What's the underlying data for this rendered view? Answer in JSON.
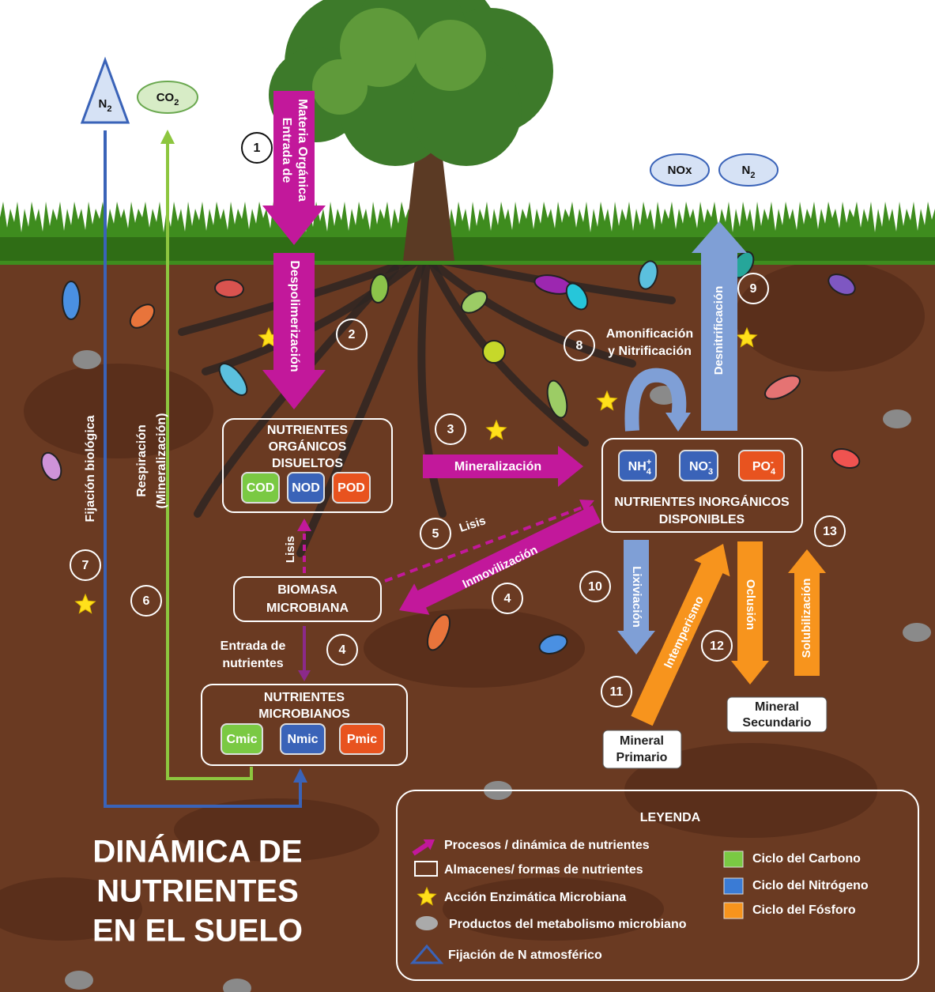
{
  "title": [
    "DINÁMICA DE",
    "NUTRIENTES",
    "EN EL SUELO"
  ],
  "atmosphere": {
    "n2_in": {
      "base": "N",
      "sub": "2"
    },
    "co2": {
      "base": "CO",
      "sub": "2"
    },
    "nox": "NOx",
    "n2_out": {
      "base": "N",
      "sub": "2"
    }
  },
  "processes": {
    "organic_input": [
      "Entrada de",
      "Materia Orgánica"
    ],
    "depolymerization": "Despolimerización",
    "mineralization": "Mineralización",
    "lysis_up": "Lisis",
    "lysis_diag": "Lisis",
    "immobilization": "Inmovilización",
    "nutrient_input": [
      "Entrada de",
      "nutrientes"
    ],
    "respiration": [
      "Respiración",
      "(Mineralización)"
    ],
    "fixation": "Fijación biológica",
    "ammonification": [
      "Amonificación",
      "y Nitrificación"
    ],
    "denitrification": "Desnitrificación",
    "leaching": "Lixiviación",
    "weathering": "Intemperismo",
    "occlusion": "Oclusión",
    "solubilization": "Solubilización"
  },
  "steps": [
    "1",
    "2",
    "3",
    "4",
    "4",
    "5",
    "6",
    "7",
    "8",
    "9",
    "10",
    "11",
    "12",
    "13"
  ],
  "stores": {
    "dissolved_organic": {
      "label": [
        "NUTRIENTES",
        "ORGÁNICOS",
        "DISUELTOS"
      ],
      "forms": [
        "COD",
        "NOD",
        "POD"
      ]
    },
    "biomass": {
      "label": [
        "BIOMASA",
        "MICROBIANA"
      ]
    },
    "microbial": {
      "label": [
        "NUTRIENTES",
        "MICROBIANOS"
      ],
      "forms": [
        "Cmic",
        "Nmic",
        "Pmic"
      ]
    },
    "inorganic": {
      "label": [
        "NUTRIENTES INORGÁNICOS",
        "DISPONIBLES"
      ],
      "forms": [
        {
          "base": "NH",
          "sub": "4",
          "sup": "+"
        },
        {
          "base": "NO",
          "sub": "3",
          "sup": "-"
        },
        {
          "base": "PO",
          "sub": "4",
          "sup": "-"
        }
      ]
    },
    "primary_mineral": [
      "Mineral",
      "Primario"
    ],
    "secondary_mineral": [
      "Mineral",
      "Secundario"
    ]
  },
  "legend": {
    "title": "LEYENDA",
    "items": [
      "Procesos / dinámica de nutrientes",
      "Almacenes/ formas de nutrientes",
      "Acción Enzimática Microbiana",
      "Productos del metabolismo microbiano",
      "Fijación de N atmosférico"
    ],
    "cycles": [
      "Ciclo del Carbono",
      "Ciclo del Nitrógeno",
      "Ciclo del Fósforo"
    ]
  }
}
